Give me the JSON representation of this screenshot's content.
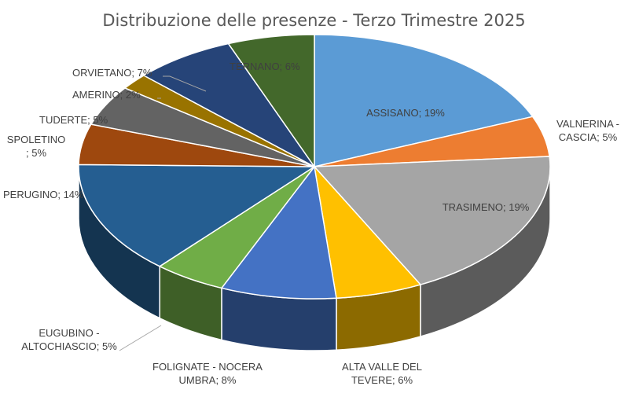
{
  "chart_data": {
    "type": "pie",
    "title": "Distribuzione delle presenze - Terzo Trimestre 2025",
    "slices": [
      {
        "label": "ASSISANO",
        "value": 19,
        "label_lines": [
          "ASSISANO; 19%"
        ],
        "color": "#5B9BD5"
      },
      {
        "label": "VALNERINA - CASCIA",
        "value": 5,
        "label_lines": [
          "VALNERINA -",
          "CASCIA; 5%"
        ],
        "color": "#ED7D31"
      },
      {
        "label": "TRASIMENO",
        "value": 19,
        "label_lines": [
          "TRASIMENO; 19%"
        ],
        "color": "#A5A5A5"
      },
      {
        "label": "ALTA VALLE DEL TEVERE",
        "value": 6,
        "label_lines": [
          "ALTA VALLE DEL",
          "TEVERE; 6%"
        ],
        "color": "#FFC000"
      },
      {
        "label": "FOLIGNATE - NOCERA UMBRA",
        "value": 8,
        "label_lines": [
          "FOLIGNATE - NOCERA",
          "UMBRA; 8%"
        ],
        "color": "#4472C4"
      },
      {
        "label": "EUGUBINO - ALTOCHIASCIO",
        "value": 5,
        "label_lines": [
          "EUGUBINO -",
          "ALTOCHIASCIO; 5%"
        ],
        "color": "#70AD47"
      },
      {
        "label": "PERUGINO",
        "value": 14,
        "label_lines": [
          "PERUGINO; 14%"
        ],
        "color": "#255E91"
      },
      {
        "label": "SPOLETINO",
        "value": 5,
        "label_lines": [
          "SPOLETINO",
          "; 5%"
        ],
        "color": "#9E480E"
      },
      {
        "label": "TUDERTE",
        "value": 5,
        "label_lines": [
          "TUDERTE; 5%"
        ],
        "color": "#636363"
      },
      {
        "label": "AMERINO",
        "value": 2,
        "label_lines": [
          "AMERINO; 2%"
        ],
        "color": "#997300"
      },
      {
        "label": "ORVIETANO",
        "value": 7,
        "label_lines": [
          "ORVIETANO; 7%"
        ],
        "color": "#264478"
      },
      {
        "label": "TERNANO",
        "value": 6,
        "label_lines": [
          "TERNANO; 6%"
        ],
        "color": "#43682B"
      }
    ]
  }
}
